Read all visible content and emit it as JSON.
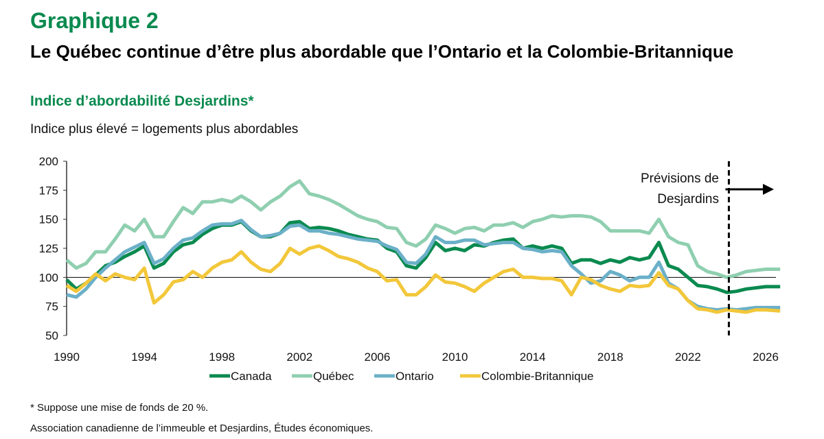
{
  "header": {
    "label": "Graphique 2",
    "title": "Le Québec continue d’être plus abordable que l’Ontario et la Colombie-Britannique",
    "subtitle": "Indice d’abordabilité Desjardins*",
    "note": "Indice plus élevé = logements plus abordables"
  },
  "footer": {
    "footnote": "* Suppose une mise de fonds de 20 %.",
    "source": "Association canadienne de l’immeuble et Desjardins, Études économiques."
  },
  "chart_data": {
    "type": "line",
    "xlim": [
      1990,
      2027
    ],
    "ylim": [
      50,
      200
    ],
    "xticks": [
      "1990",
      "1994",
      "1998",
      "2002",
      "2006",
      "2010",
      "2014",
      "2018",
      "2022",
      "2026"
    ],
    "yticks": [
      "50",
      "75",
      "100",
      "125",
      "150",
      "175",
      "200"
    ],
    "reference_line": 100,
    "forecast": {
      "start": 2024,
      "label_line1": "Prévisions de",
      "label_line2": "Desjardins"
    },
    "legend_position": "bottom",
    "x": [
      1990,
      1990.5,
      1991,
      1991.5,
      1992,
      1992.5,
      1993,
      1993.5,
      1994,
      1994.5,
      1995,
      1995.5,
      1996,
      1996.5,
      1997,
      1997.5,
      1998,
      1998.5,
      1999,
      1999.5,
      2000,
      2000.5,
      2001,
      2001.5,
      2002,
      2002.5,
      2003,
      2003.5,
      2004,
      2004.5,
      2005,
      2005.5,
      2006,
      2006.5,
      2007,
      2007.5,
      2008,
      2008.5,
      2009,
      2009.5,
      2010,
      2010.5,
      2011,
      2011.5,
      2012,
      2012.5,
      2013,
      2013.5,
      2014,
      2014.5,
      2015,
      2015.5,
      2016,
      2016.5,
      2017,
      2017.5,
      2018,
      2018.5,
      2019,
      2019.5,
      2020,
      2020.5,
      2021,
      2021.5,
      2022,
      2022.5,
      2023,
      2023.5,
      2024,
      2024.5,
      2025,
      2025.5,
      2026,
      2026.75
    ],
    "series": [
      {
        "name": "Canada",
        "color": "#0a8a4f",
        "values": [
          98,
          90,
          95,
          102,
          110,
          113,
          118,
          122,
          127,
          108,
          112,
          122,
          128,
          130,
          137,
          142,
          145,
          145,
          148,
          140,
          135,
          135,
          138,
          147,
          148,
          142,
          143,
          142,
          140,
          137,
          135,
          133,
          132,
          125,
          122,
          110,
          108,
          117,
          130,
          123,
          125,
          123,
          128,
          127,
          130,
          132,
          133,
          125,
          127,
          125,
          127,
          125,
          112,
          115,
          115,
          112,
          115,
          113,
          117,
          115,
          117,
          130,
          110,
          107,
          100,
          93,
          92,
          90,
          87,
          88,
          90,
          91,
          92,
          92
        ]
      },
      {
        "name": "Québec",
        "color": "#8fcfb0",
        "values": [
          115,
          108,
          112,
          122,
          122,
          133,
          145,
          140,
          150,
          135,
          135,
          148,
          160,
          155,
          165,
          165,
          167,
          165,
          170,
          165,
          158,
          165,
          170,
          178,
          183,
          172,
          170,
          167,
          163,
          158,
          153,
          150,
          148,
          143,
          142,
          130,
          127,
          133,
          145,
          142,
          138,
          142,
          143,
          140,
          145,
          145,
          147,
          143,
          148,
          150,
          153,
          152,
          153,
          153,
          152,
          148,
          140,
          140,
          140,
          140,
          138,
          150,
          135,
          130,
          128,
          110,
          105,
          103,
          100,
          102,
          105,
          106,
          107,
          107
        ]
      },
      {
        "name": "Ontario",
        "color": "#6bb0c8",
        "values": [
          85,
          83,
          90,
          100,
          108,
          115,
          122,
          126,
          130,
          112,
          116,
          125,
          132,
          134,
          140,
          145,
          146,
          146,
          149,
          141,
          135,
          136,
          138,
          144,
          145,
          140,
          140,
          138,
          137,
          135,
          133,
          132,
          131,
          127,
          124,
          113,
          112,
          120,
          135,
          130,
          130,
          132,
          132,
          128,
          129,
          130,
          130,
          125,
          124,
          122,
          123,
          122,
          110,
          103,
          95,
          97,
          105,
          102,
          97,
          100,
          100,
          113,
          95,
          90,
          80,
          75,
          73,
          72,
          73,
          72,
          73,
          74,
          74,
          74
        ]
      },
      {
        "name": "Colombie-Britannique",
        "color": "#f2c73a",
        "values": [
          93,
          88,
          95,
          103,
          97,
          103,
          100,
          98,
          108,
          78,
          85,
          96,
          98,
          105,
          100,
          108,
          113,
          115,
          122,
          113,
          107,
          105,
          112,
          125,
          120,
          125,
          127,
          123,
          118,
          116,
          113,
          108,
          105,
          97,
          98,
          85,
          85,
          92,
          102,
          96,
          95,
          92,
          88,
          95,
          100,
          105,
          107,
          100,
          100,
          99,
          99,
          97,
          85,
          100,
          98,
          93,
          90,
          88,
          93,
          92,
          93,
          104,
          93,
          90,
          80,
          73,
          72,
          70,
          72,
          71,
          70,
          72,
          72,
          71
        ]
      }
    ]
  }
}
